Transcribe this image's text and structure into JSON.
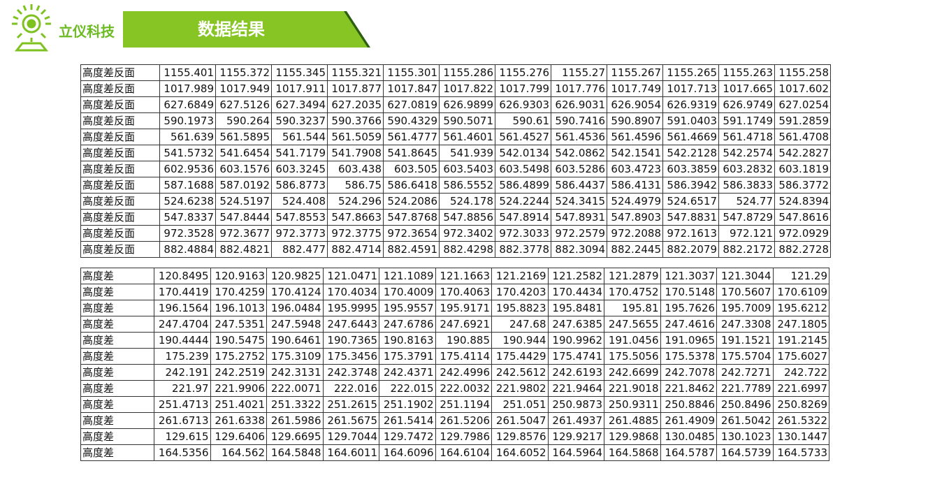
{
  "header": {
    "brand": "立仪科技",
    "title": "数据结果"
  },
  "tables": [
    {
      "rows": [
        {
          "label": "高度差反面",
          "values": [
            "1155.401",
            "1155.372",
            "1155.345",
            "1155.321",
            "1155.301",
            "1155.286",
            "1155.276",
            "1155.27",
            "1155.267",
            "1155.265",
            "1155.263",
            "1155.258"
          ]
        },
        {
          "label": "高度差反面",
          "values": [
            "1017.989",
            "1017.949",
            "1017.911",
            "1017.877",
            "1017.847",
            "1017.822",
            "1017.799",
            "1017.776",
            "1017.749",
            "1017.713",
            "1017.665",
            "1017.602"
          ]
        },
        {
          "label": "高度差反面",
          "values": [
            "627.6849",
            "627.5126",
            "627.3494",
            "627.2035",
            "627.0819",
            "626.9899",
            "626.9303",
            "626.9031",
            "626.9054",
            "626.9319",
            "626.9749",
            "627.0254"
          ]
        },
        {
          "label": "高度差反面",
          "values": [
            "590.1973",
            "590.264",
            "590.3237",
            "590.3766",
            "590.4329",
            "590.5071",
            "590.61",
            "590.7416",
            "590.8907",
            "591.0403",
            "591.1749",
            "591.2859"
          ]
        },
        {
          "label": "高度差反面",
          "values": [
            "561.639",
            "561.5895",
            "561.544",
            "561.5059",
            "561.4777",
            "561.4601",
            "561.4527",
            "561.4536",
            "561.4596",
            "561.4669",
            "561.4718",
            "561.4708"
          ]
        },
        {
          "label": "高度差反面",
          "values": [
            "541.5732",
            "541.6454",
            "541.7179",
            "541.7908",
            "541.8645",
            "541.939",
            "542.0134",
            "542.0862",
            "542.1541",
            "542.2128",
            "542.2574",
            "542.2827"
          ]
        },
        {
          "label": "高度差反面",
          "values": [
            "602.9536",
            "603.1576",
            "603.3245",
            "603.438",
            "603.505",
            "603.5403",
            "603.5498",
            "603.5286",
            "603.4723",
            "603.3859",
            "603.2832",
            "603.1819"
          ]
        },
        {
          "label": "高度差反面",
          "values": [
            "587.1688",
            "587.0192",
            "586.8773",
            "586.75",
            "586.6418",
            "586.5552",
            "586.4899",
            "586.4437",
            "586.4131",
            "586.3942",
            "586.3833",
            "586.3772"
          ]
        },
        {
          "label": "高度差反面",
          "values": [
            "524.6238",
            "524.5197",
            "524.408",
            "524.296",
            "524.2086",
            "524.178",
            "524.2244",
            "524.3415",
            "524.4979",
            "524.6517",
            "524.77",
            "524.8394"
          ]
        },
        {
          "label": "高度差反面",
          "values": [
            "547.8337",
            "547.8444",
            "547.8553",
            "547.8663",
            "547.8768",
            "547.8856",
            "547.8914",
            "547.8931",
            "547.8903",
            "547.8831",
            "547.8729",
            "547.8616"
          ]
        },
        {
          "label": "高度差反面",
          "values": [
            "972.3528",
            "972.3677",
            "972.3773",
            "972.3775",
            "972.3654",
            "972.3402",
            "972.3033",
            "972.2579",
            "972.2088",
            "972.1613",
            "972.121",
            "972.0929"
          ]
        },
        {
          "label": "高度差反面",
          "values": [
            "882.4884",
            "882.4821",
            "882.477",
            "882.4714",
            "882.4591",
            "882.4298",
            "882.3778",
            "882.3094",
            "882.2445",
            "882.2079",
            "882.2172",
            "882.2728"
          ]
        }
      ]
    },
    {
      "rows": [
        {
          "label": "高度差",
          "values": [
            "120.8495",
            "120.9163",
            "120.9825",
            "121.0471",
            "121.1089",
            "121.1663",
            "121.2169",
            "121.2582",
            "121.2879",
            "121.3037",
            "121.3044",
            "121.29"
          ]
        },
        {
          "label": "高度差",
          "values": [
            "170.4419",
            "170.4259",
            "170.4124",
            "170.4034",
            "170.4009",
            "170.4063",
            "170.4203",
            "170.4434",
            "170.4752",
            "170.5148",
            "170.5607",
            "170.6109"
          ]
        },
        {
          "label": "高度差",
          "values": [
            "196.1564",
            "196.1013",
            "196.0484",
            "195.9995",
            "195.9557",
            "195.9171",
            "195.8823",
            "195.8481",
            "195.81",
            "195.7626",
            "195.7009",
            "195.6212"
          ]
        },
        {
          "label": "高度差",
          "values": [
            "247.4704",
            "247.5351",
            "247.5948",
            "247.6443",
            "247.6786",
            "247.6921",
            "247.68",
            "247.6385",
            "247.5655",
            "247.4616",
            "247.3308",
            "247.1805"
          ]
        },
        {
          "label": "高度差",
          "values": [
            "190.4444",
            "190.5475",
            "190.6461",
            "190.7365",
            "190.8163",
            "190.885",
            "190.944",
            "190.9962",
            "191.0456",
            "191.0965",
            "191.1521",
            "191.2145"
          ]
        },
        {
          "label": "高度差",
          "values": [
            "175.239",
            "175.2752",
            "175.3109",
            "175.3456",
            "175.3791",
            "175.4114",
            "175.4429",
            "175.4741",
            "175.5056",
            "175.5378",
            "175.5704",
            "175.6027"
          ]
        },
        {
          "label": "高度差",
          "values": [
            "242.191",
            "242.2519",
            "242.3131",
            "242.3748",
            "242.4371",
            "242.4996",
            "242.5612",
            "242.6193",
            "242.6699",
            "242.7078",
            "242.7271",
            "242.722"
          ]
        },
        {
          "label": "高度差",
          "values": [
            "221.97",
            "221.9906",
            "222.0071",
            "222.016",
            "222.015",
            "222.0032",
            "221.9802",
            "221.9464",
            "221.9018",
            "221.8462",
            "221.7789",
            "221.6997"
          ]
        },
        {
          "label": "高度差",
          "values": [
            "251.4713",
            "251.4021",
            "251.3322",
            "251.2615",
            "251.1902",
            "251.1194",
            "251.051",
            "250.9873",
            "250.9311",
            "250.8846",
            "250.8496",
            "250.8269"
          ]
        },
        {
          "label": "高度差",
          "values": [
            "261.6713",
            "261.6338",
            "261.5986",
            "261.5675",
            "261.5414",
            "261.5206",
            "261.5047",
            "261.4937",
            "261.4885",
            "261.4909",
            "261.5042",
            "261.5322"
          ]
        },
        {
          "label": "高度差",
          "values": [
            "129.615",
            "129.6406",
            "129.6695",
            "129.7044",
            "129.7472",
            "129.7986",
            "129.8576",
            "129.9217",
            "129.9868",
            "130.0485",
            "130.1023",
            "130.1447"
          ]
        },
        {
          "label": "高度差",
          "values": [
            "164.5356",
            "164.562",
            "164.5848",
            "164.6011",
            "164.6096",
            "164.6104",
            "164.6052",
            "164.5964",
            "164.5868",
            "164.5787",
            "164.5739",
            "164.5733"
          ]
        }
      ]
    }
  ]
}
